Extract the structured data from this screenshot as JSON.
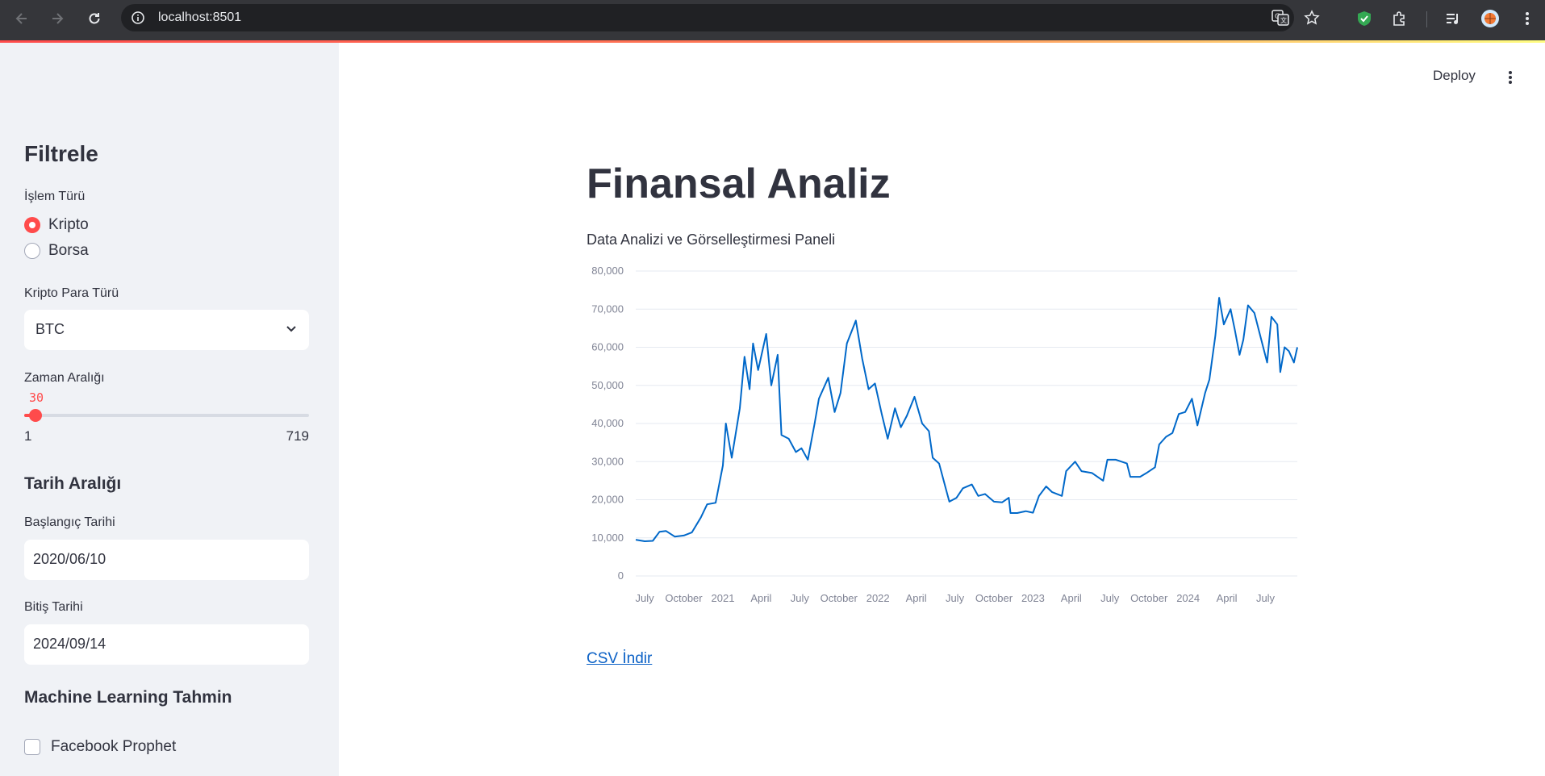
{
  "browser": {
    "url": "localhost:8501"
  },
  "sidebar": {
    "title": "Filtrele",
    "transaction_type": {
      "label": "İşlem Türü",
      "options": [
        {
          "label": "Kripto",
          "selected": true
        },
        {
          "label": "Borsa",
          "selected": false
        }
      ]
    },
    "crypto_type": {
      "label": "Kripto Para Türü",
      "value": "BTC"
    },
    "time_range": {
      "label": "Zaman Aralığı",
      "value": "30",
      "min": "1",
      "max": "719"
    },
    "date_range": {
      "title": "Tarih Aralığı",
      "start_label": "Başlangıç Tarihi",
      "start_value": "2020/06/10",
      "end_label": "Bitiş Tarihi",
      "end_value": "2024/09/14"
    },
    "ml": {
      "title": "Machine Learning Tahmin",
      "checkbox_label": "Facebook Prophet",
      "checked": false
    }
  },
  "header": {
    "deploy_label": "Deploy"
  },
  "main": {
    "title": "Finansal Analiz",
    "subtitle": "Data Analizi ve Görselleştirmesi Paneli",
    "csv_link": "CSV İndir"
  },
  "colors": {
    "accent": "#ff4b4b",
    "line": "#0068c9",
    "sidebar_bg": "#f0f2f6",
    "link": "#0b61c6"
  },
  "chart_data": {
    "type": "line",
    "title": "",
    "xlabel": "",
    "ylabel": "",
    "ylim": [
      0,
      80000
    ],
    "yticks": [
      "0",
      "10,000",
      "20,000",
      "30,000",
      "40,000",
      "50,000",
      "60,000",
      "70,000",
      "80,000"
    ],
    "xticks": [
      {
        "label": "July",
        "date": "2020-07-01"
      },
      {
        "label": "October",
        "date": "2020-10-01"
      },
      {
        "label": "2021",
        "date": "2021-01-01"
      },
      {
        "label": "April",
        "date": "2021-04-01"
      },
      {
        "label": "July",
        "date": "2021-07-01"
      },
      {
        "label": "October",
        "date": "2021-10-01"
      },
      {
        "label": "2022",
        "date": "2022-01-01"
      },
      {
        "label": "April",
        "date": "2022-04-01"
      },
      {
        "label": "July",
        "date": "2022-07-01"
      },
      {
        "label": "October",
        "date": "2022-10-01"
      },
      {
        "label": "2023",
        "date": "2023-01-01"
      },
      {
        "label": "April",
        "date": "2023-04-01"
      },
      {
        "label": "July",
        "date": "2023-07-01"
      },
      {
        "label": "October",
        "date": "2023-10-01"
      },
      {
        "label": "2024",
        "date": "2024-01-01"
      },
      {
        "label": "April",
        "date": "2024-04-01"
      },
      {
        "label": "July",
        "date": "2024-07-01"
      }
    ],
    "xlim": [
      "2020-06-10",
      "2024-09-14"
    ],
    "series": [
      {
        "x": [
          "2020-06-10",
          "2020-07-01",
          "2020-07-20",
          "2020-08-05",
          "2020-08-20",
          "2020-09-10",
          "2020-10-01",
          "2020-10-20",
          "2020-11-10",
          "2020-11-25",
          "2020-12-15",
          "2021-01-01",
          "2021-01-08",
          "2021-01-22",
          "2021-02-10",
          "2021-02-21",
          "2021-03-05",
          "2021-03-13",
          "2021-03-25",
          "2021-04-13",
          "2021-04-25",
          "2021-05-10",
          "2021-05-19",
          "2021-06-05",
          "2021-06-22",
          "2021-07-05",
          "2021-07-20",
          "2021-08-05",
          "2021-08-15",
          "2021-09-06",
          "2021-09-21",
          "2021-10-05",
          "2021-10-20",
          "2021-11-10",
          "2021-11-25",
          "2021-12-10",
          "2021-12-25",
          "2022-01-10",
          "2022-01-24",
          "2022-02-10",
          "2022-02-24",
          "2022-03-10",
          "2022-03-28",
          "2022-04-15",
          "2022-05-01",
          "2022-05-10",
          "2022-05-25",
          "2022-06-12",
          "2022-06-18",
          "2022-07-05",
          "2022-07-20",
          "2022-08-10",
          "2022-08-25",
          "2022-09-10",
          "2022-10-01",
          "2022-10-20",
          "2022-11-05",
          "2022-11-09",
          "2022-11-25",
          "2022-12-15",
          "2023-01-01",
          "2023-01-15",
          "2023-02-01",
          "2023-02-15",
          "2023-03-10",
          "2023-03-20",
          "2023-04-10",
          "2023-04-25",
          "2023-05-20",
          "2023-06-15",
          "2023-06-25",
          "2023-07-15",
          "2023-08-10",
          "2023-08-18",
          "2023-09-10",
          "2023-09-25",
          "2023-10-15",
          "2023-10-25",
          "2023-11-10",
          "2023-11-25",
          "2023-12-10",
          "2023-12-25",
          "2024-01-10",
          "2024-01-23",
          "2024-02-10",
          "2024-02-20",
          "2024-03-05",
          "2024-03-14",
          "2024-03-25",
          "2024-04-10",
          "2024-04-20",
          "2024-05-01",
          "2024-05-10",
          "2024-05-21",
          "2024-06-05",
          "2024-06-20",
          "2024-07-05",
          "2024-07-15",
          "2024-07-29",
          "2024-08-05",
          "2024-08-15",
          "2024-08-25",
          "2024-09-06",
          "2024-09-14"
        ],
        "y": [
          9500,
          9100,
          9200,
          11600,
          11800,
          10300,
          10600,
          11400,
          15300,
          18800,
          19200,
          29000,
          40000,
          31000,
          44000,
          57500,
          49000,
          61000,
          54000,
          63500,
          50000,
          58000,
          37000,
          36000,
          32500,
          33500,
          30500,
          40000,
          46500,
          52000,
          43000,
          48000,
          61000,
          67000,
          57000,
          49000,
          50500,
          42500,
          36000,
          44000,
          39000,
          42000,
          47000,
          40000,
          38000,
          31000,
          29500,
          22000,
          19500,
          20500,
          23000,
          24000,
          21000,
          21500,
          19500,
          19300,
          20500,
          16500,
          16500,
          17000,
          16600,
          21000,
          23500,
          22000,
          21000,
          27500,
          30000,
          27500,
          27000,
          25000,
          30500,
          30500,
          29500,
          26000,
          26000,
          27000,
          28500,
          34500,
          36500,
          37500,
          42500,
          43000,
          46500,
          39500,
          48000,
          51500,
          63000,
          73000,
          66000,
          70000,
          64500,
          58000,
          62000,
          71000,
          69000,
          62500,
          56000,
          68000,
          66000,
          53500,
          60000,
          59000,
          56000,
          60000
        ]
      }
    ]
  }
}
